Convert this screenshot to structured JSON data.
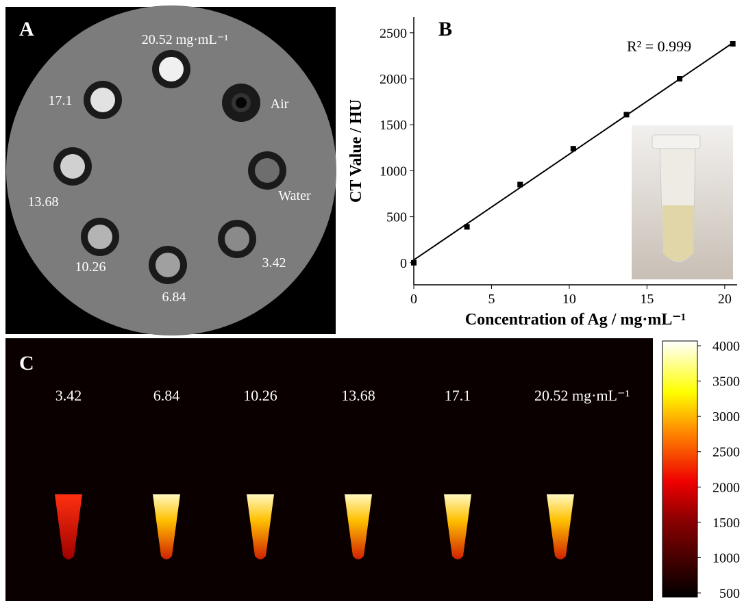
{
  "panel_a": {
    "label": "A",
    "annotations": [
      "20.52 mg·mL⁻¹",
      "17.1",
      "Air",
      "13.68",
      "Water",
      "10.26",
      "3.42",
      "6.84"
    ]
  },
  "chart_data": {
    "type": "scatter",
    "label": "B",
    "x_label": "Concentration of Ag / mg·mL⁻¹",
    "y_label": "CT Value / HU",
    "annotation": "R² = 0.999",
    "x": [
      0,
      3.42,
      6.84,
      10.26,
      13.68,
      17.1,
      20.52
    ],
    "values": [
      0,
      390,
      850,
      1240,
      1610,
      2000,
      2380
    ],
    "fit": {
      "x": [
        0,
        20.52
      ],
      "y": [
        30,
        2390
      ]
    },
    "color": "#000000",
    "xlim": [
      0,
      20.8
    ],
    "ylim": [
      -240,
      2670
    ],
    "xticks": [
      0,
      5,
      10,
      15,
      20
    ],
    "yticks": [
      0,
      500,
      1000,
      1500,
      2000,
      2500
    ]
  },
  "panel_c": {
    "label": "C",
    "annotations": [
      "3.42",
      "6.84",
      "10.26",
      "13.68",
      "17.1",
      "20.52 mg·mL⁻¹"
    ],
    "colorbar": {
      "lim": [
        500,
        4000
      ],
      "ticks": [
        500,
        1000,
        1500,
        2000,
        2500,
        3000,
        3500,
        4000
      ]
    }
  }
}
